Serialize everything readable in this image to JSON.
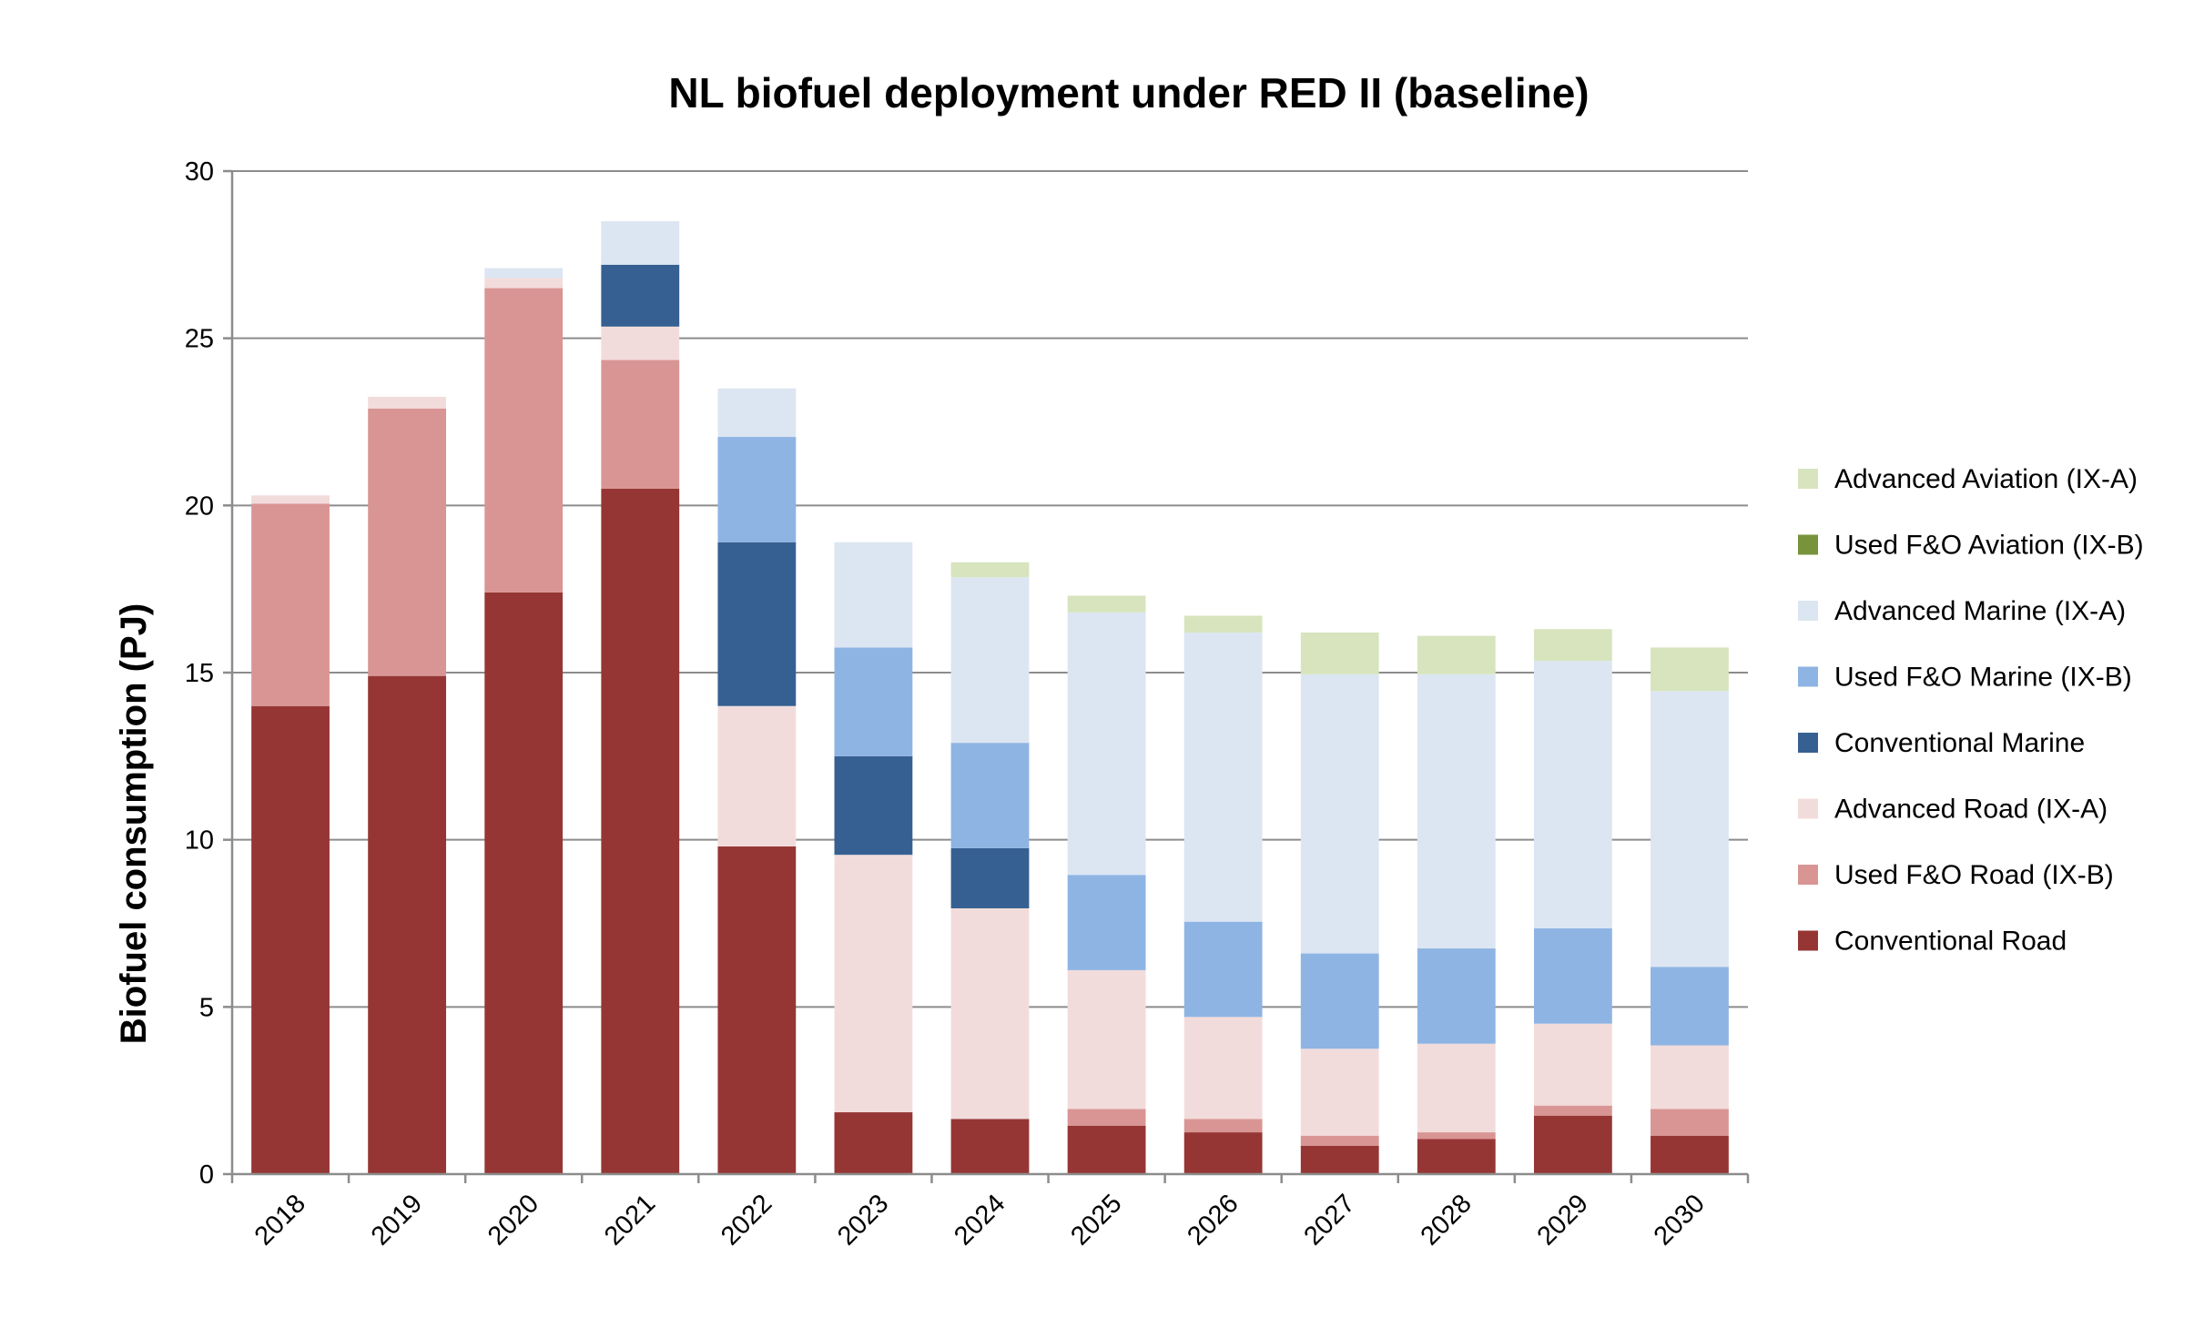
{
  "chart_data": {
    "type": "bar",
    "stacked": true,
    "title": "NL biofuel deployment under RED II (baseline)",
    "xlabel": "",
    "ylabel": "Biofuel consumption (PJ)",
    "ylim": [
      0,
      30
    ],
    "yticks": [
      0,
      5,
      10,
      15,
      20,
      25,
      30
    ],
    "grid": true,
    "legend_position": "right",
    "categories": [
      "2018",
      "2019",
      "2020",
      "2021",
      "2022",
      "2023",
      "2024",
      "2025",
      "2026",
      "2027",
      "2028",
      "2029",
      "2030"
    ],
    "series": [
      {
        "name": "Conventional Road",
        "color": "#963634",
        "values": [
          14.0,
          14.9,
          17.4,
          20.5,
          9.8,
          1.85,
          1.65,
          1.45,
          1.25,
          0.85,
          1.05,
          1.75,
          1.15
        ]
      },
      {
        "name": "Used F&O Road (IX-B)",
        "color": "#d99594",
        "values": [
          6.05,
          8.0,
          9.1,
          3.85,
          0,
          0,
          0,
          0.5,
          0.4,
          0.3,
          0.2,
          0.3,
          0.8
        ]
      },
      {
        "name": "Advanced Road (IX-A)",
        "color": "#f2dcdb",
        "values": [
          0.25,
          0.35,
          0.3,
          1.0,
          4.2,
          7.7,
          6.3,
          4.15,
          3.05,
          2.6,
          2.65,
          2.45,
          1.9
        ]
      },
      {
        "name": "Conventional Marine",
        "color": "#366092",
        "values": [
          0,
          0,
          0,
          1.85,
          4.9,
          2.95,
          1.8,
          0,
          0,
          0,
          0,
          0,
          0
        ]
      },
      {
        "name": "Used F&O Marine (IX-B)",
        "color": "#8eb4e3",
        "values": [
          0,
          0,
          0,
          0,
          3.15,
          3.25,
          3.15,
          2.85,
          2.85,
          2.85,
          2.85,
          2.85,
          2.35
        ]
      },
      {
        "name": "Advanced Marine (IX-A)",
        "color": "#dce6f2",
        "values": [
          0,
          0,
          0.3,
          1.3,
          1.45,
          3.15,
          4.95,
          7.85,
          8.65,
          8.35,
          8.2,
          8.0,
          8.25
        ]
      },
      {
        "name": "Used F&O Aviation (IX-B)",
        "color": "#77933c",
        "values": [
          0,
          0,
          0,
          0,
          0,
          0,
          0,
          0,
          0,
          0,
          0,
          0,
          0
        ]
      },
      {
        "name": "Advanced Aviation (IX-A)",
        "color": "#d7e4bd",
        "values": [
          0,
          0,
          0,
          0,
          0,
          0,
          0.45,
          0.5,
          0.5,
          1.25,
          1.15,
          0.95,
          1.3
        ]
      }
    ]
  }
}
